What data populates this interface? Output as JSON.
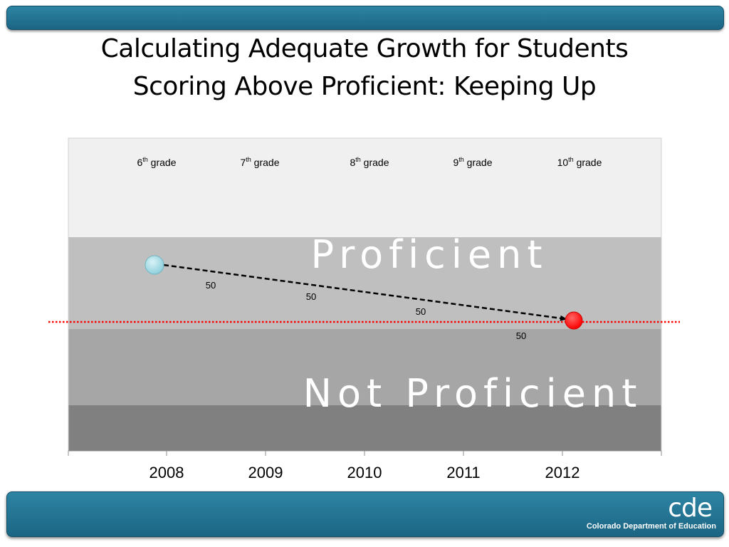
{
  "slide": {
    "title_line1": "Calculating Adequate Growth for Students",
    "title_line2": "Scoring Above Proficient: Keeping Up",
    "logo_mark": "cde",
    "logo_text": "Colorado Department of Education"
  },
  "colors": {
    "bar": "#1f6f8f",
    "band_top": "#f0f0f0",
    "band_proficient": "#bfbfbf",
    "band_not_proficient": "#a6a6a6",
    "band_bottom": "#808080",
    "start_point": "#8fd0dc",
    "end_point": "#ff0000",
    "target_line": "#ff0000",
    "path_line": "#000000"
  },
  "chart_data": {
    "type": "line",
    "x": [
      "2008",
      "2009",
      "2010",
      "2011",
      "2012"
    ],
    "grade_labels": [
      {
        "grade": "6",
        "sup": "th",
        "suffix": "grade"
      },
      {
        "grade": "7",
        "sup": "th",
        "suffix": "grade"
      },
      {
        "grade": "8",
        "sup": "th",
        "suffix": "grade"
      },
      {
        "grade": "9",
        "sup": "th",
        "suffix": "grade"
      },
      {
        "grade": "10",
        "sup": "th",
        "suffix": "grade"
      }
    ],
    "bands": [
      {
        "label": ""
      },
      {
        "label": "Proficient"
      },
      {
        "label": "Not Proficient"
      },
      {
        "label": ""
      }
    ],
    "path": {
      "start_year": "2008",
      "end_year": "2012",
      "style": "dashed-arrow"
    },
    "growth_labels": [
      "50",
      "50",
      "50",
      "50"
    ],
    "target_line": {
      "style": "dotted",
      "meaning": "proficiency cut"
    }
  }
}
